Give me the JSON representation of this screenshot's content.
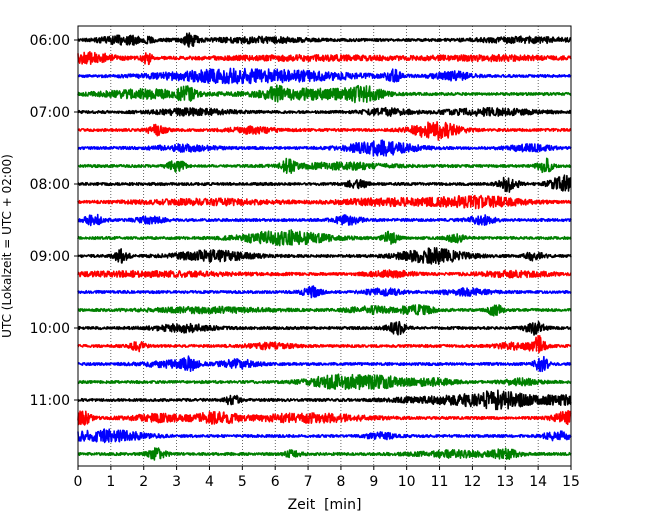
{
  "chart_data": {
    "type": "line",
    "title": "",
    "xlabel": "Zeit  [min]",
    "ylabel": "UTC (Lokalzeit = UTC + 02:00)",
    "xlim": [
      0,
      15
    ],
    "x_ticks": [
      0,
      1,
      2,
      3,
      4,
      5,
      6,
      7,
      8,
      9,
      10,
      11,
      12,
      13,
      14,
      15
    ],
    "y_tick_labels": [
      "06:00",
      "07:00",
      "08:00",
      "09:00",
      "10:00",
      "11:00"
    ],
    "y_tick_rows": [
      0,
      4,
      8,
      12,
      16,
      20
    ],
    "grid": "vertical dotted",
    "legend": "none",
    "row_colors": [
      "#000000",
      "#ff0000",
      "#0000ff",
      "#008000"
    ],
    "rows": [
      {
        "start": "06:00",
        "bursts": [
          [
            1.5,
            0.6,
            4
          ],
          [
            3.4,
            0.15,
            6
          ],
          [
            5.5,
            1.0,
            2.5
          ],
          [
            13.6,
            1.0,
            2.5
          ]
        ]
      },
      {
        "start": "06:15",
        "bursts": [
          [
            0.3,
            0.6,
            5
          ],
          [
            2.1,
            0.1,
            6
          ],
          [
            7.0,
            2.0,
            2.2
          ],
          [
            12.5,
            1.5,
            2.2
          ]
        ]
      },
      {
        "start": "06:30",
        "bursts": [
          [
            4.2,
            1.3,
            5
          ],
          [
            6.6,
            1.5,
            4
          ],
          [
            9.6,
            0.15,
            6
          ],
          [
            11.4,
            0.4,
            4
          ]
        ]
      },
      {
        "start": "06:45",
        "bursts": [
          [
            2.1,
            1.0,
            4
          ],
          [
            3.3,
            0.2,
            5
          ],
          [
            7.0,
            1.2,
            5
          ],
          [
            8.7,
            0.4,
            6
          ],
          [
            6.0,
            0.2,
            4
          ]
        ]
      },
      {
        "start": "07:00",
        "bursts": [
          [
            3.5,
            0.8,
            3
          ],
          [
            9.4,
            0.5,
            3
          ],
          [
            12.5,
            1.0,
            3
          ]
        ]
      },
      {
        "start": "07:15",
        "bursts": [
          [
            2.4,
            0.2,
            5
          ],
          [
            5.3,
            0.5,
            3
          ],
          [
            10.9,
            0.5,
            9
          ]
        ]
      },
      {
        "start": "07:30",
        "bursts": [
          [
            3.2,
            0.6,
            3
          ],
          [
            9.2,
            0.7,
            7
          ],
          [
            13.7,
            0.5,
            3
          ]
        ]
      },
      {
        "start": "07:45",
        "bursts": [
          [
            3.0,
            0.2,
            5
          ],
          [
            6.4,
            0.15,
            6
          ],
          [
            14.2,
            0.15,
            7
          ],
          [
            8.0,
            1.0,
            3
          ]
        ]
      },
      {
        "start": "08:00",
        "bursts": [
          [
            8.5,
            0.2,
            5
          ],
          [
            13.1,
            0.2,
            7
          ],
          [
            14.8,
            0.3,
            8
          ]
        ]
      },
      {
        "start": "08:15",
        "bursts": [
          [
            9.3,
            1.0,
            3
          ],
          [
            12.1,
            1.0,
            5.5
          ],
          [
            4.0,
            1.5,
            2.5
          ]
        ]
      },
      {
        "start": "08:30",
        "bursts": [
          [
            0.5,
            0.2,
            5
          ],
          [
            2.2,
            0.3,
            3
          ],
          [
            8.2,
            0.3,
            4
          ],
          [
            12.3,
            0.3,
            4
          ]
        ]
      },
      {
        "start": "08:45",
        "bursts": [
          [
            6.3,
            0.9,
            7
          ],
          [
            9.5,
            0.15,
            6
          ],
          [
            11.5,
            0.2,
            4
          ]
        ]
      },
      {
        "start": "09:00",
        "bursts": [
          [
            1.3,
            0.15,
            6
          ],
          [
            4.1,
            0.8,
            5
          ],
          [
            10.8,
            0.7,
            7
          ],
          [
            13.9,
            0.2,
            4
          ]
        ]
      },
      {
        "start": "09:15",
        "bursts": [
          [
            2.0,
            2.0,
            2.2
          ],
          [
            9.5,
            0.5,
            3
          ],
          [
            13.3,
            0.8,
            2.5
          ]
        ]
      },
      {
        "start": "09:30",
        "bursts": [
          [
            7.1,
            0.2,
            5
          ],
          [
            9.3,
            0.4,
            3
          ],
          [
            11.8,
            0.5,
            3
          ]
        ]
      },
      {
        "start": "09:45",
        "bursts": [
          [
            4.0,
            1.2,
            2.5
          ],
          [
            8.9,
            0.5,
            3
          ],
          [
            10.3,
            0.4,
            4
          ],
          [
            12.7,
            0.15,
            6
          ]
        ]
      },
      {
        "start": "10:00",
        "bursts": [
          [
            3.2,
            0.6,
            3.5
          ],
          [
            9.7,
            0.2,
            6
          ],
          [
            13.9,
            0.2,
            6
          ]
        ]
      },
      {
        "start": "10:15",
        "bursts": [
          [
            1.8,
            0.15,
            5
          ],
          [
            14.0,
            0.15,
            9
          ],
          [
            13.3,
            0.4,
            3
          ],
          [
            5.8,
            0.5,
            2.5
          ]
        ]
      },
      {
        "start": "10:30",
        "bursts": [
          [
            3.4,
            0.15,
            5
          ],
          [
            4.9,
            0.4,
            4
          ],
          [
            14.1,
            0.15,
            7
          ],
          [
            2.8,
            0.6,
            3
          ]
        ]
      },
      {
        "start": "10:45",
        "bursts": [
          [
            7.8,
            0.6,
            6
          ],
          [
            9.1,
            0.6,
            6
          ],
          [
            13.5,
            0.4,
            3
          ],
          [
            10.8,
            0.5,
            3
          ]
        ]
      },
      {
        "start": "11:00",
        "bursts": [
          [
            4.7,
            0.15,
            5
          ],
          [
            11.0,
            1.0,
            3
          ],
          [
            12.8,
            0.7,
            8
          ],
          [
            14.7,
            0.5,
            4
          ]
        ]
      },
      {
        "start": "11:15",
        "bursts": [
          [
            0.1,
            0.2,
            7
          ],
          [
            4.2,
            0.5,
            5
          ],
          [
            7.0,
            1.2,
            4
          ],
          [
            14.9,
            0.3,
            6
          ],
          [
            2.4,
            0.6,
            3.5
          ]
        ]
      },
      {
        "start": "11:30",
        "bursts": [
          [
            0.8,
            0.8,
            6
          ],
          [
            9.2,
            0.3,
            3
          ],
          [
            14.6,
            0.3,
            4
          ]
        ]
      },
      {
        "start": "11:45",
        "bursts": [
          [
            2.4,
            0.2,
            5
          ],
          [
            11.4,
            0.8,
            3
          ],
          [
            13.0,
            0.3,
            4
          ],
          [
            6.5,
            0.2,
            3
          ]
        ]
      }
    ]
  }
}
